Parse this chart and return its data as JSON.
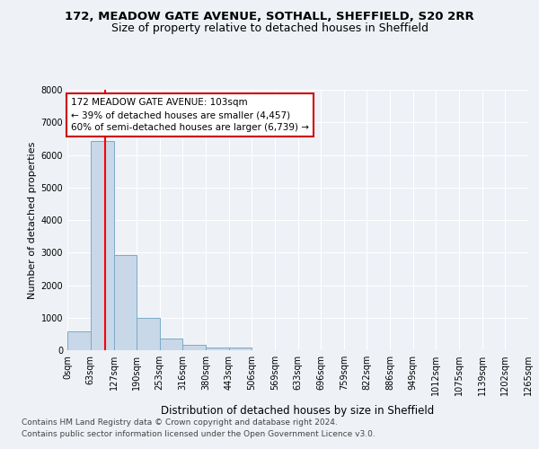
{
  "title1": "172, MEADOW GATE AVENUE, SOTHALL, SHEFFIELD, S20 2RR",
  "title2": "Size of property relative to detached houses in Sheffield",
  "xlabel": "Distribution of detached houses by size in Sheffield",
  "ylabel": "Number of detached properties",
  "bar_values": [
    580,
    6420,
    2920,
    990,
    360,
    170,
    90,
    90,
    0,
    0,
    0,
    0,
    0,
    0,
    0,
    0,
    0,
    0,
    0,
    0
  ],
  "bin_edges": [
    0,
    63,
    127,
    190,
    253,
    316,
    380,
    443,
    506,
    569,
    633,
    696,
    759,
    822,
    886,
    949,
    1012,
    1075,
    1139,
    1202,
    1265
  ],
  "bin_labels": [
    "0sqm",
    "63sqm",
    "127sqm",
    "190sqm",
    "253sqm",
    "316sqm",
    "380sqm",
    "443sqm",
    "506sqm",
    "569sqm",
    "633sqm",
    "696sqm",
    "759sqm",
    "822sqm",
    "886sqm",
    "949sqm",
    "1012sqm",
    "1075sqm",
    "1139sqm",
    "1202sqm",
    "1265sqm"
  ],
  "bar_color": "#c8d8e8",
  "bar_edge_color": "#7aaac8",
  "red_line_x": 103,
  "ylim": [
    0,
    8000
  ],
  "yticks": [
    0,
    1000,
    2000,
    3000,
    4000,
    5000,
    6000,
    7000,
    8000
  ],
  "annotation_title": "172 MEADOW GATE AVENUE: 103sqm",
  "annotation_line1": "← 39% of detached houses are smaller (4,457)",
  "annotation_line2": "60% of semi-detached houses are larger (6,739) →",
  "annotation_box_color": "#ffffff",
  "annotation_box_edge_color": "#cc0000",
  "footer1": "Contains HM Land Registry data © Crown copyright and database right 2024.",
  "footer2": "Contains public sector information licensed under the Open Government Licence v3.0.",
  "background_color": "#eef2f7",
  "grid_color": "#ffffff",
  "title1_fontsize": 9.5,
  "title2_fontsize": 9,
  "ylabel_fontsize": 8,
  "xlabel_fontsize": 8.5,
  "tick_fontsize": 7,
  "footer_fontsize": 6.5,
  "annotation_fontsize": 7.5
}
